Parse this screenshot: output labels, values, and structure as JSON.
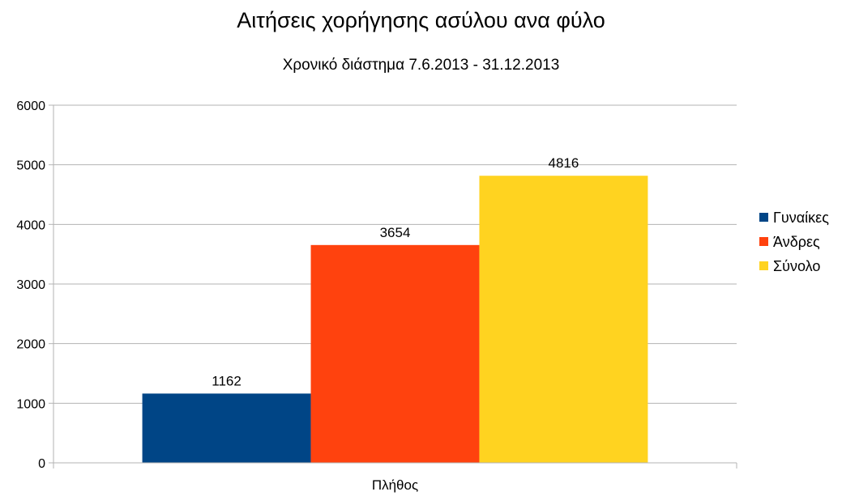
{
  "chart_data": {
    "type": "bar",
    "title": "Αιτήσεις χορήγησης ασύλου ανα φύλο",
    "subtitle": "Χρονικό διάστημα  7.6.2013 - 31.12.2013",
    "categories": [
      "Πλήθος"
    ],
    "series": [
      {
        "name": "Γυναίκες",
        "values": [
          1162
        ],
        "color": "#004586"
      },
      {
        "name": "Άνδρες",
        "values": [
          3654
        ],
        "color": "#ff420e"
      },
      {
        "name": "Σύνολο",
        "values": [
          4816
        ],
        "color": "#ffd320"
      }
    ],
    "ylim": [
      0,
      6000
    ],
    "yticks": [
      0,
      1000,
      2000,
      3000,
      4000,
      5000,
      6000
    ],
    "grid": true,
    "legend_position": "right",
    "data_labels": true
  }
}
